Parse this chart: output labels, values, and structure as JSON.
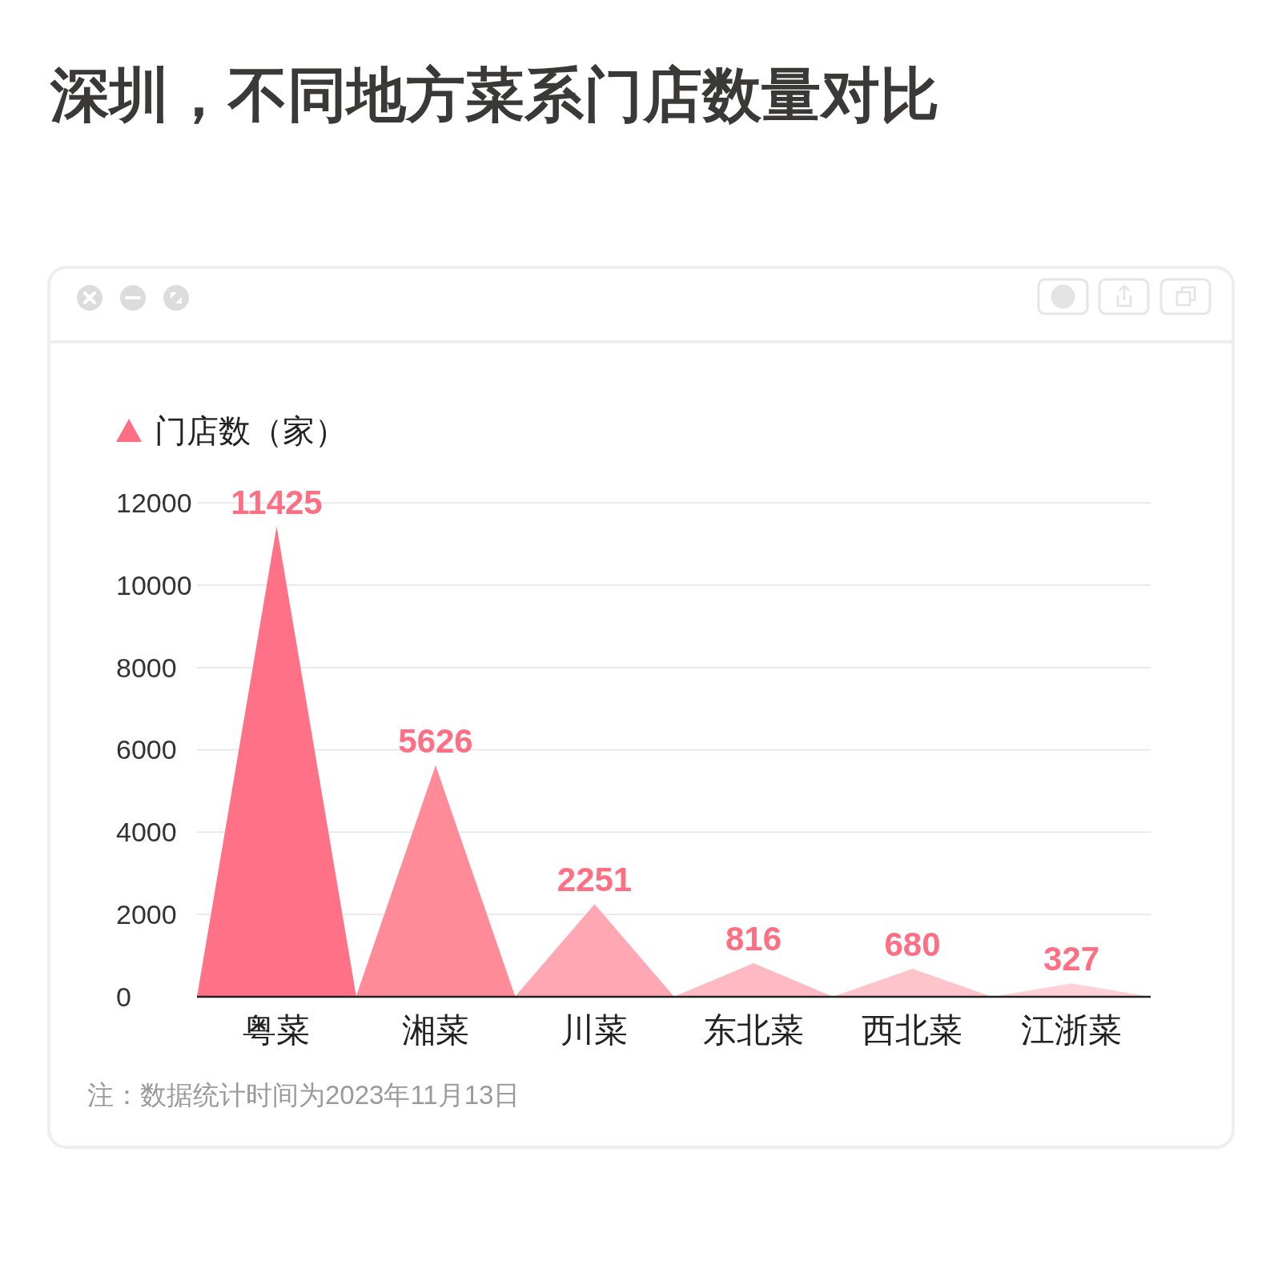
{
  "chart_data": {
    "type": "bar",
    "title": "深圳，不同地方菜系门店数量对比",
    "categories": [
      "粤菜",
      "湘菜",
      "川菜",
      "东北菜",
      "西北菜",
      "江浙菜"
    ],
    "series": [
      {
        "name": "门店数（家）",
        "color": "#ff6f84",
        "colors": [
          "#ff7186",
          "#ff8b99",
          "#ffa8b3",
          "#ffb9c2",
          "#ffc4cb",
          "#ffd1d7"
        ],
        "values": [
          11425,
          5626,
          2251,
          816,
          680,
          327
        ]
      }
    ],
    "ylim": [
      0,
      12000
    ],
    "yticks": [
      0,
      2000,
      4000,
      6000,
      8000,
      10000,
      12000
    ],
    "grid": "y",
    "legend": "top left",
    "marker": "triangle",
    "data_labels": true,
    "annotations": [
      "注：数据统计时间为2023年11月13日"
    ]
  }
}
